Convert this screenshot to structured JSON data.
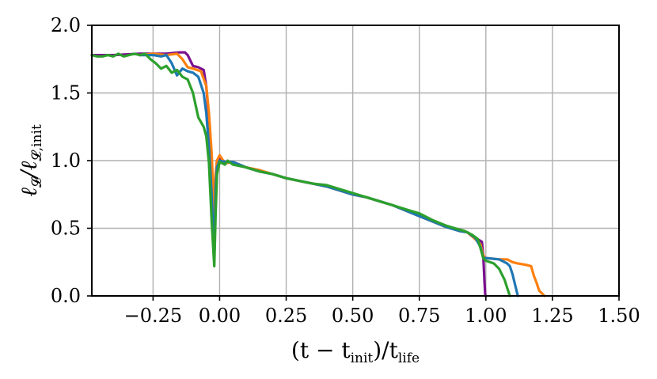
{
  "chart_data": {
    "type": "line",
    "title": "",
    "xlabel": {
      "base": "(t − t",
      "sub1": "init",
      "mid": ")/t",
      "sub2": "life"
    },
    "ylabel": {
      "base": "ℓ",
      "sub1": "𝓛",
      "mid": "/ℓ",
      "sub2": "𝓛,init"
    },
    "xlim": [
      -0.48,
      1.5
    ],
    "ylim": [
      0.0,
      2.0
    ],
    "xticks": [
      -0.25,
      0.0,
      0.25,
      0.5,
      0.75,
      1.0,
      1.25,
      1.5
    ],
    "xtick_labels": [
      "−0.25",
      "0.00",
      "0.25",
      "0.50",
      "0.75",
      "1.00",
      "1.25",
      "1.50"
    ],
    "yticks": [
      0.0,
      0.5,
      1.0,
      1.5,
      2.0
    ],
    "ytick_labels": [
      "0.0",
      "0.5",
      "1.0",
      "1.5",
      "2.0"
    ],
    "grid": true,
    "series": [
      {
        "color": "#7b0f8f",
        "points": [
          [
            -0.48,
            1.78
          ],
          [
            -0.4,
            1.78
          ],
          [
            -0.3,
            1.79
          ],
          [
            -0.2,
            1.79
          ],
          [
            -0.15,
            1.8
          ],
          [
            -0.13,
            1.8
          ],
          [
            -0.12,
            1.78
          ],
          [
            -0.1,
            1.7
          ],
          [
            -0.08,
            1.69
          ],
          [
            -0.06,
            1.67
          ],
          [
            -0.05,
            1.55
          ],
          [
            -0.04,
            1.3
          ],
          [
            -0.03,
            0.95
          ],
          [
            -0.02,
            0.7
          ],
          [
            -0.015,
            0.88
          ],
          [
            -0.01,
            1.0
          ],
          [
            0.0,
            1.02
          ],
          [
            0.02,
            0.99
          ],
          [
            0.05,
            0.99
          ],
          [
            0.1,
            0.95
          ],
          [
            0.15,
            0.92
          ],
          [
            0.2,
            0.9
          ],
          [
            0.25,
            0.87
          ],
          [
            0.3,
            0.85
          ],
          [
            0.35,
            0.83
          ],
          [
            0.4,
            0.81
          ],
          [
            0.45,
            0.78
          ],
          [
            0.5,
            0.75
          ],
          [
            0.55,
            0.73
          ],
          [
            0.6,
            0.7
          ],
          [
            0.65,
            0.67
          ],
          [
            0.7,
            0.63
          ],
          [
            0.75,
            0.59
          ],
          [
            0.8,
            0.55
          ],
          [
            0.85,
            0.51
          ],
          [
            0.9,
            0.49
          ],
          [
            0.93,
            0.47
          ],
          [
            0.96,
            0.43
          ],
          [
            0.985,
            0.4
          ],
          [
            0.99,
            0.3
          ],
          [
            0.995,
            0.1
          ],
          [
            0.998,
            0.0
          ],
          [
            1.0,
            0.0
          ]
        ]
      },
      {
        "color": "#ff7f0e",
        "points": [
          [
            -0.3,
            1.78
          ],
          [
            -0.25,
            1.79
          ],
          [
            -0.2,
            1.78
          ],
          [
            -0.16,
            1.79
          ],
          [
            -0.14,
            1.75
          ],
          [
            -0.12,
            1.69
          ],
          [
            -0.1,
            1.68
          ],
          [
            -0.07,
            1.66
          ],
          [
            -0.05,
            1.55
          ],
          [
            -0.04,
            1.35
          ],
          [
            -0.03,
            1.05
          ],
          [
            -0.02,
            0.6
          ],
          [
            -0.015,
            0.9
          ],
          [
            -0.01,
            1.0
          ],
          [
            0.0,
            1.04
          ],
          [
            0.02,
            0.98
          ],
          [
            0.05,
            0.99
          ],
          [
            0.1,
            0.95
          ],
          [
            0.15,
            0.93
          ],
          [
            0.2,
            0.9
          ],
          [
            0.25,
            0.87
          ],
          [
            0.3,
            0.85
          ],
          [
            0.35,
            0.83
          ],
          [
            0.4,
            0.81
          ],
          [
            0.45,
            0.78
          ],
          [
            0.5,
            0.75
          ],
          [
            0.55,
            0.73
          ],
          [
            0.6,
            0.7
          ],
          [
            0.65,
            0.67
          ],
          [
            0.7,
            0.63
          ],
          [
            0.75,
            0.59
          ],
          [
            0.8,
            0.55
          ],
          [
            0.85,
            0.51
          ],
          [
            0.9,
            0.48
          ],
          [
            0.93,
            0.47
          ],
          [
            0.96,
            0.42
          ],
          [
            0.98,
            0.38
          ],
          [
            0.99,
            0.3
          ],
          [
            1.0,
            0.28
          ],
          [
            1.05,
            0.27
          ],
          [
            1.08,
            0.27
          ],
          [
            1.1,
            0.25
          ],
          [
            1.12,
            0.24
          ],
          [
            1.15,
            0.23
          ],
          [
            1.17,
            0.22
          ],
          [
            1.18,
            0.15
          ],
          [
            1.19,
            0.1
          ],
          [
            1.2,
            0.04
          ],
          [
            1.21,
            0.02
          ],
          [
            1.22,
            0.0
          ]
        ]
      },
      {
        "color": "#1f77b4",
        "points": [
          [
            -0.3,
            1.78
          ],
          [
            -0.25,
            1.78
          ],
          [
            -0.22,
            1.77
          ],
          [
            -0.2,
            1.78
          ],
          [
            -0.18,
            1.72
          ],
          [
            -0.16,
            1.63
          ],
          [
            -0.14,
            1.68
          ],
          [
            -0.12,
            1.66
          ],
          [
            -0.1,
            1.65
          ],
          [
            -0.08,
            1.62
          ],
          [
            -0.06,
            1.5
          ],
          [
            -0.05,
            1.35
          ],
          [
            -0.04,
            1.1
          ],
          [
            -0.03,
            0.75
          ],
          [
            -0.02,
            0.28
          ],
          [
            -0.015,
            0.8
          ],
          [
            -0.01,
            0.95
          ],
          [
            0.0,
            1.0
          ],
          [
            0.02,
            0.99
          ],
          [
            0.05,
            0.99
          ],
          [
            0.1,
            0.95
          ],
          [
            0.15,
            0.92
          ],
          [
            0.2,
            0.9
          ],
          [
            0.25,
            0.87
          ],
          [
            0.3,
            0.85
          ],
          [
            0.35,
            0.83
          ],
          [
            0.4,
            0.81
          ],
          [
            0.45,
            0.78
          ],
          [
            0.5,
            0.75
          ],
          [
            0.55,
            0.73
          ],
          [
            0.6,
            0.7
          ],
          [
            0.65,
            0.67
          ],
          [
            0.7,
            0.63
          ],
          [
            0.75,
            0.59
          ],
          [
            0.8,
            0.55
          ],
          [
            0.85,
            0.51
          ],
          [
            0.9,
            0.48
          ],
          [
            0.93,
            0.47
          ],
          [
            0.96,
            0.43
          ],
          [
            0.98,
            0.36
          ],
          [
            0.99,
            0.28
          ],
          [
            1.0,
            0.28
          ],
          [
            1.05,
            0.27
          ],
          [
            1.08,
            0.24
          ],
          [
            1.09,
            0.22
          ],
          [
            1.1,
            0.16
          ],
          [
            1.11,
            0.08
          ],
          [
            1.12,
            0.0
          ]
        ]
      },
      {
        "color": "#2ca02c",
        "points": [
          [
            -0.48,
            1.78
          ],
          [
            -0.46,
            1.77
          ],
          [
            -0.44,
            1.77
          ],
          [
            -0.42,
            1.78
          ],
          [
            -0.4,
            1.77
          ],
          [
            -0.38,
            1.79
          ],
          [
            -0.36,
            1.77
          ],
          [
            -0.34,
            1.78
          ],
          [
            -0.32,
            1.79
          ],
          [
            -0.3,
            1.78
          ],
          [
            -0.28,
            1.79
          ],
          [
            -0.26,
            1.75
          ],
          [
            -0.24,
            1.72
          ],
          [
            -0.22,
            1.68
          ],
          [
            -0.2,
            1.7
          ],
          [
            -0.18,
            1.65
          ],
          [
            -0.16,
            1.67
          ],
          [
            -0.14,
            1.62
          ],
          [
            -0.12,
            1.6
          ],
          [
            -0.1,
            1.5
          ],
          [
            -0.08,
            1.32
          ],
          [
            -0.06,
            1.25
          ],
          [
            -0.05,
            1.18
          ],
          [
            -0.04,
            0.98
          ],
          [
            -0.03,
            0.55
          ],
          [
            -0.02,
            0.22
          ],
          [
            -0.015,
            0.6
          ],
          [
            -0.01,
            0.9
          ],
          [
            0.0,
            0.99
          ],
          [
            0.02,
            0.97
          ],
          [
            0.03,
            1.0
          ],
          [
            0.05,
            0.97
          ],
          [
            0.1,
            0.95
          ],
          [
            0.15,
            0.92
          ],
          [
            0.2,
            0.9
          ],
          [
            0.25,
            0.87
          ],
          [
            0.3,
            0.85
          ],
          [
            0.35,
            0.83
          ],
          [
            0.4,
            0.82
          ],
          [
            0.45,
            0.79
          ],
          [
            0.5,
            0.76
          ],
          [
            0.55,
            0.73
          ],
          [
            0.6,
            0.7
          ],
          [
            0.65,
            0.67
          ],
          [
            0.7,
            0.64
          ],
          [
            0.75,
            0.61
          ],
          [
            0.8,
            0.56
          ],
          [
            0.85,
            0.52
          ],
          [
            0.9,
            0.49
          ],
          [
            0.92,
            0.48
          ],
          [
            0.95,
            0.45
          ],
          [
            0.97,
            0.42
          ],
          [
            0.98,
            0.35
          ],
          [
            0.99,
            0.28
          ],
          [
            1.0,
            0.26
          ],
          [
            1.03,
            0.24
          ],
          [
            1.05,
            0.2
          ],
          [
            1.07,
            0.12
          ],
          [
            1.08,
            0.06
          ],
          [
            1.09,
            0.0
          ]
        ]
      }
    ]
  }
}
